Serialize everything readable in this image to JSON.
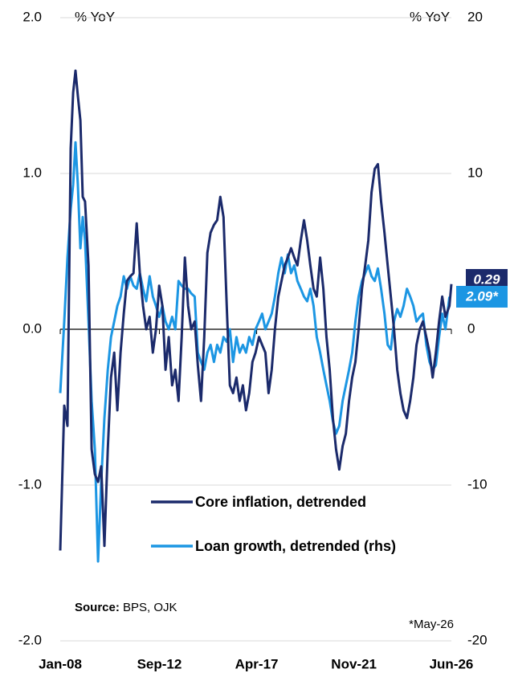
{
  "chart_data": {
    "type": "line",
    "y_label": "% YoY",
    "y2_label": "% YoY",
    "source_label": "Source:",
    "source": "BPS, OJK",
    "note": "*May-26",
    "xlim": [
      2008,
      2026.42
    ],
    "xticks": [
      {
        "value": 2008,
        "label": "Jan-08"
      },
      {
        "value": 2012.67,
        "label": "Sep-12"
      },
      {
        "value": 2017.25,
        "label": "Apr-17"
      },
      {
        "value": 2021.83,
        "label": "Nov-21"
      },
      {
        "value": 2026.42,
        "label": "Jun-26"
      }
    ],
    "ylim": [
      -2,
      2
    ],
    "yticks": [
      {
        "value": -2,
        "label": "-2.0"
      },
      {
        "value": -1,
        "label": "-1.0"
      },
      {
        "value": 0,
        "label": "0.0"
      },
      {
        "value": 1,
        "label": "1.0"
      },
      {
        "value": 2,
        "label": "2.0"
      }
    ],
    "y2lim": [
      -20,
      20
    ],
    "y2ticks": [
      -20,
      -10,
      0,
      10,
      20
    ],
    "grid": true,
    "x": [
      2008.0,
      2008.19,
      2008.34,
      2008.49,
      2008.61,
      2008.72,
      2008.83,
      2008.95,
      2009.06,
      2009.17,
      2009.33,
      2009.48,
      2009.63,
      2009.78,
      2009.93,
      2010.08,
      2010.24,
      2010.39,
      2010.54,
      2010.69,
      2010.84,
      2010.99,
      2011.14,
      2011.3,
      2011.45,
      2011.6,
      2011.75,
      2011.9,
      2012.05,
      2012.21,
      2012.36,
      2012.51,
      2012.66,
      2012.81,
      2012.96,
      2013.11,
      2013.27,
      2013.42,
      2013.57,
      2013.72,
      2013.87,
      2014.02,
      2014.17,
      2014.33,
      2014.48,
      2014.63,
      2014.78,
      2014.93,
      2015.08,
      2015.24,
      2015.39,
      2015.54,
      2015.69,
      2015.84,
      2015.99,
      2016.14,
      2016.3,
      2016.45,
      2016.6,
      2016.75,
      2016.9,
      2017.05,
      2017.2,
      2017.36,
      2017.51,
      2017.66,
      2017.81,
      2017.96,
      2018.11,
      2018.27,
      2018.42,
      2018.57,
      2018.72,
      2018.87,
      2019.02,
      2019.17,
      2019.33,
      2019.48,
      2019.63,
      2019.78,
      2019.93,
      2020.08,
      2020.24,
      2020.39,
      2020.54,
      2020.69,
      2020.84,
      2020.99,
      2021.14,
      2021.3,
      2021.45,
      2021.6,
      2021.75,
      2021.9,
      2022.05,
      2022.21,
      2022.36,
      2022.51,
      2022.66,
      2022.81,
      2022.96,
      2023.11,
      2023.27,
      2023.42,
      2023.57,
      2023.72,
      2023.87,
      2024.02,
      2024.17,
      2024.33,
      2024.48,
      2024.63,
      2024.78,
      2024.93,
      2025.08,
      2025.24,
      2025.39,
      2025.54,
      2025.69,
      2025.84,
      2025.99,
      2026.14,
      2026.33,
      2026.42
    ],
    "series": [
      {
        "name": "Core inflation, detrended",
        "color": "#1b2a6b",
        "axis": "y",
        "end_label": "0.29",
        "values": [
          -1.42,
          -0.49,
          -0.62,
          1.16,
          1.52,
          1.66,
          1.5,
          1.34,
          0.85,
          0.82,
          0.41,
          -0.77,
          -0.93,
          -0.98,
          -0.88,
          -1.39,
          -0.77,
          -0.31,
          -0.15,
          -0.52,
          -0.15,
          0.1,
          0.31,
          0.34,
          0.36,
          0.68,
          0.36,
          0.15,
          0,
          0.08,
          -0.15,
          0,
          0.28,
          0.15,
          -0.26,
          -0.05,
          -0.36,
          -0.26,
          -0.46,
          -0.05,
          0.46,
          0.15,
          0,
          0.05,
          -0.23,
          -0.46,
          -0.05,
          0.49,
          0.62,
          0.67,
          0.7,
          0.85,
          0.72,
          0.15,
          -0.36,
          -0.41,
          -0.31,
          -0.46,
          -0.36,
          -0.52,
          -0.41,
          -0.21,
          -0.15,
          -0.05,
          -0.1,
          -0.15,
          -0.41,
          -0.26,
          0,
          0.21,
          0.31,
          0.41,
          0.46,
          0.52,
          0.46,
          0.41,
          0.57,
          0.7,
          0.57,
          0.41,
          0.26,
          0.21,
          0.46,
          0.26,
          -0.05,
          -0.26,
          -0.57,
          -0.77,
          -0.9,
          -0.75,
          -0.67,
          -0.46,
          -0.31,
          -0.21,
          0,
          0.26,
          0.41,
          0.57,
          0.88,
          1.03,
          1.06,
          0.82,
          0.62,
          0.41,
          0.21,
          0,
          -0.26,
          -0.41,
          -0.52,
          -0.57,
          -0.46,
          -0.31,
          -0.1,
          0,
          0.05,
          -0.05,
          -0.15,
          -0.31,
          -0.15,
          0.05,
          0.21,
          0.08,
          0.15,
          0.29
        ]
      },
      {
        "name": "Loan growth, detrended (rhs)",
        "color": "#1c96e3",
        "axis": "y2",
        "end_label": "2.09*",
        "values": [
          -4.1,
          0.5,
          4.6,
          7.7,
          9.3,
          12.0,
          9.3,
          5.2,
          7.2,
          5.7,
          0.5,
          -4.6,
          -7.7,
          -14.9,
          -9.8,
          -5.7,
          -2.6,
          -0.5,
          0.5,
          1.5,
          2.1,
          3.4,
          2.6,
          3.4,
          2.8,
          2.6,
          3.6,
          2.6,
          1.8,
          3.4,
          2.1,
          1.5,
          0.8,
          1.5,
          0.5,
          0,
          0.8,
          0,
          3.1,
          2.8,
          2.6,
          2.6,
          2.3,
          2.1,
          -1.5,
          -2.1,
          -2.6,
          -1.5,
          -1.0,
          -2.1,
          -1.0,
          -1.5,
          -0.5,
          -0.8,
          0,
          -2.1,
          -0.5,
          -1.5,
          -1.0,
          -1.5,
          -0.5,
          -1.0,
          0,
          0.5,
          1.0,
          0,
          0.5,
          1.0,
          2.1,
          3.6,
          4.6,
          3.6,
          4.8,
          3.6,
          4.1,
          3.1,
          2.6,
          2.1,
          1.8,
          2.6,
          1.5,
          -0.5,
          -1.5,
          -2.6,
          -3.6,
          -4.6,
          -5.9,
          -6.7,
          -6.2,
          -4.6,
          -3.6,
          -2.6,
          -1.5,
          0.5,
          2.1,
          3.1,
          3.6,
          4.1,
          3.4,
          3.1,
          3.9,
          2.6,
          1.0,
          -1.0,
          -1.3,
          0.5,
          1.3,
          0.8,
          1.5,
          2.6,
          2.1,
          1.5,
          0.5,
          0.8,
          1.0,
          -1.0,
          -2.1,
          -2.6,
          -2.3,
          -0.5,
          1.0,
          0,
          2.09,
          null
        ]
      }
    ]
  }
}
